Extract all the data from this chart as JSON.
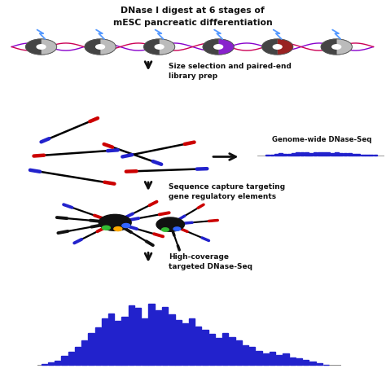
{
  "title_line1": "DNase I digest at 6 stages of",
  "title_line2": "mESC pancreatic differentiation",
  "label_size_sel": "Size selection and paired-end\nlibrary prep",
  "label_genome_wide": "Genome-wide DNase-Seq",
  "label_seq_capture": "Sequence capture targeting\ngene regulatory elements",
  "label_high_cov": "High-coverage\ntargeted DNase-Seq",
  "bg_color": "#ffffff",
  "blue_color": "#2222cc",
  "red_color": "#cc0000",
  "black_color": "#111111",
  "arrow_color": "#111111",
  "small_bars": [
    0.0,
    0.0,
    0.02,
    0.04,
    0.1,
    0.13,
    0.08,
    0.12,
    0.17,
    0.19,
    0.22,
    0.2,
    0.18,
    0.22,
    0.24,
    0.21,
    0.19,
    0.17,
    0.2,
    0.18,
    0.15,
    0.13,
    0.1,
    0.08,
    0.06,
    0.04,
    0.03,
    0.01,
    0.0,
    0.0
  ],
  "large_bars": [
    0.02,
    0.04,
    0.07,
    0.14,
    0.2,
    0.28,
    0.38,
    0.5,
    0.58,
    0.72,
    0.8,
    0.68,
    0.75,
    0.92,
    0.88,
    0.72,
    0.95,
    0.85,
    0.9,
    0.78,
    0.7,
    0.65,
    0.72,
    0.6,
    0.55,
    0.48,
    0.42,
    0.5,
    0.43,
    0.38,
    0.3,
    0.28,
    0.22,
    0.18,
    0.2,
    0.15,
    0.18,
    0.12,
    0.1,
    0.08,
    0.06,
    0.03,
    0.01,
    0.0
  ],
  "nuc_x": [
    0.55,
    1.35,
    2.15,
    2.95,
    3.75,
    4.55
  ],
  "nuc_colors": [
    "#bbbbbb",
    "#bbbbbb",
    "#bbbbbb",
    "#8822cc",
    "#992222",
    "#bbbbbb"
  ],
  "lightning_color": "#5599ff",
  "frags": [
    [
      0.55,
      6.58,
      40,
      1.0,
      "#2222cc",
      "#cc0000"
    ],
    [
      0.45,
      6.2,
      8,
      1.15,
      "#cc0000",
      "#2222cc"
    ],
    [
      0.4,
      5.82,
      -18,
      1.2,
      "#2222cc",
      "#cc0000"
    ],
    [
      1.4,
      6.52,
      -35,
      0.95,
      "#cc0000",
      "#2222cc"
    ],
    [
      1.65,
      6.18,
      22,
      1.05,
      "#2222cc",
      "#cc0000"
    ],
    [
      1.7,
      5.78,
      4,
      1.1,
      "#cc0000",
      "#2222cc"
    ]
  ]
}
